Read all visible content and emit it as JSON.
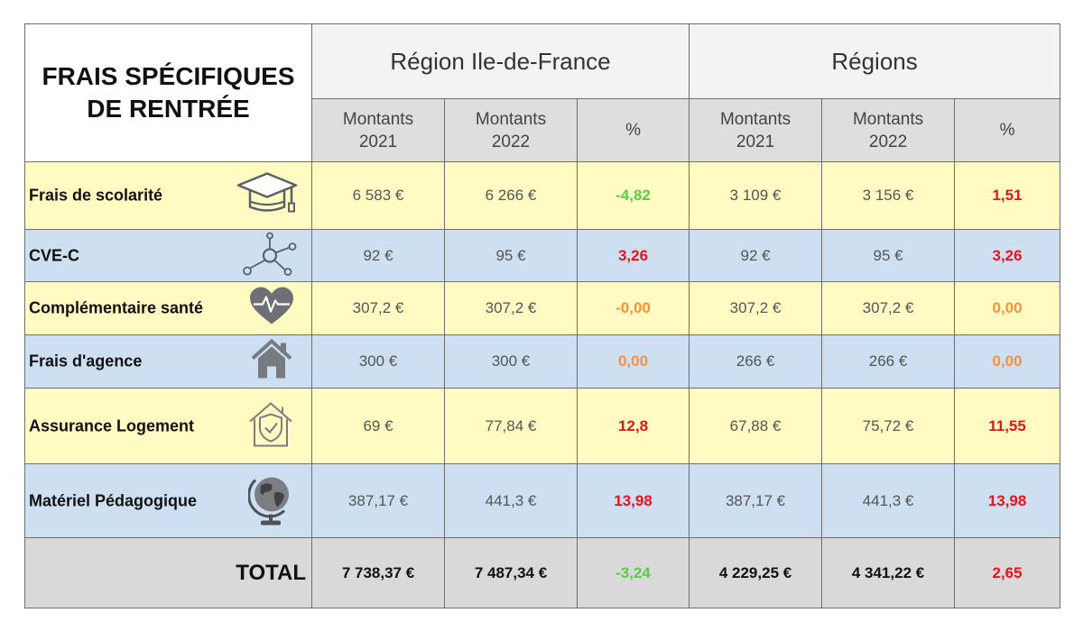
{
  "table": {
    "title_line1": "FRAIS SPÉCIFIQUES",
    "title_line2": "DE RENTRÉE",
    "groups": [
      "Région Ile-de-France",
      "Régions"
    ],
    "sub_headers": {
      "col1_line1": "Montants",
      "col1_line2": "2021",
      "col2_line1": "Montants",
      "col2_line2": "2022",
      "pct": "%"
    },
    "rows": [
      {
        "label": "Frais de scolarité",
        "icon": "graduation-cap-icon",
        "idf_2021": "6 583 €",
        "idf_2022": "6 266 €",
        "idf_pct": "-4,82",
        "idf_pct_color": "#5ec94a",
        "reg_2021": "3 109 €",
        "reg_2022": "3 156 €",
        "reg_pct": "1,51",
        "reg_pct_color": "#e8131b"
      },
      {
        "label": "CVE-C",
        "icon": "molecule-network-icon",
        "idf_2021": "92 €",
        "idf_2022": "95 €",
        "idf_pct": "3,26",
        "idf_pct_color": "#e8131b",
        "reg_2021": "92 €",
        "reg_2022": "95 €",
        "reg_pct": "3,26",
        "reg_pct_color": "#e8131b"
      },
      {
        "label": "Complémentaire santé",
        "icon": "heart-pulse-icon",
        "idf_2021": "307,2 €",
        "idf_2022": "307,2 €",
        "idf_pct": "-0,00",
        "idf_pct_color": "#f7913d",
        "reg_2021": "307,2 €",
        "reg_2022": "307,2 €",
        "reg_pct": "0,00",
        "reg_pct_color": "#f7913d"
      },
      {
        "label": "Frais d'agence",
        "icon": "house-icon",
        "idf_2021": "300 €",
        "idf_2022": "300 €",
        "idf_pct": "0,00",
        "idf_pct_color": "#f7913d",
        "reg_2021": "266 €",
        "reg_2022": "266 €",
        "reg_pct": "0,00",
        "reg_pct_color": "#f7913d"
      },
      {
        "label": "Assurance Logement",
        "icon": "house-shield-icon",
        "idf_2021": "69 €",
        "idf_2022": "77,84 €",
        "idf_pct": "12,8",
        "idf_pct_color": "#e8131b",
        "reg_2021": "67,88 €",
        "reg_2022": "75,72 €",
        "reg_pct": "11,55",
        "reg_pct_color": "#e8131b"
      },
      {
        "label": "Matériel Pédagogique",
        "icon": "globe-icon",
        "idf_2021": "387,17 €",
        "idf_2022": "441,3 €",
        "idf_pct": "13,98",
        "idf_pct_color": "#e8131b",
        "reg_2021": "387,17 €",
        "reg_2022": "441,3 €",
        "reg_pct": "13,98",
        "reg_pct_color": "#e8131b"
      }
    ],
    "total": {
      "label": "TOTAL",
      "idf_2021": "7 738,37 €",
      "idf_2022": "7 487,34 €",
      "idf_pct": "-3,24",
      "idf_pct_color": "#5ec94a",
      "reg_2021": "4 229,25 €",
      "reg_2022": "4 341,22 €",
      "reg_pct": "2,65",
      "reg_pct_color": "#e8131b"
    }
  }
}
